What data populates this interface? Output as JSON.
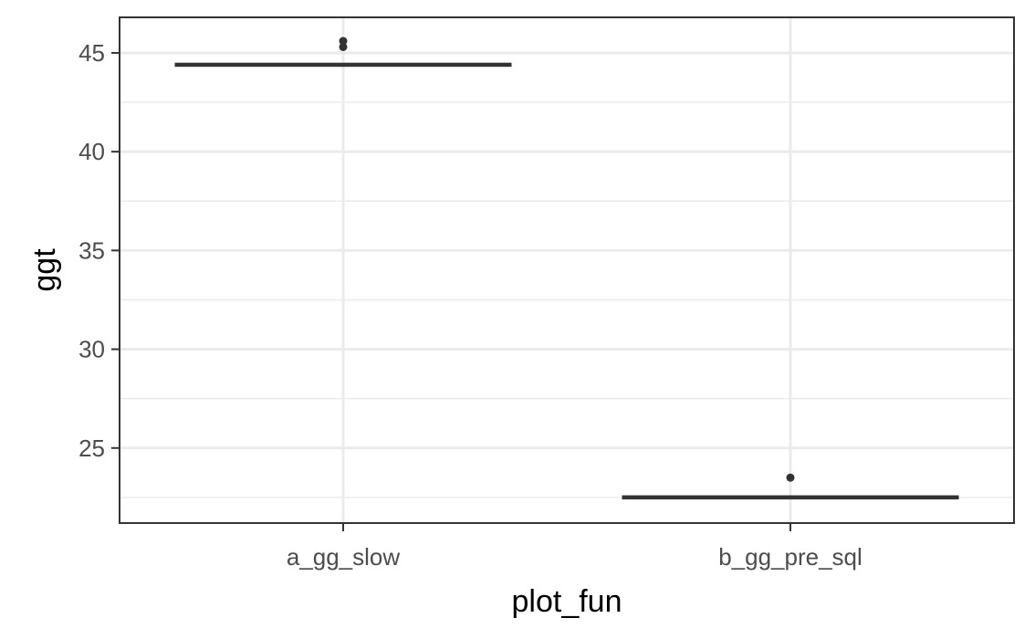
{
  "chart_data": {
    "type": "boxplot",
    "title": "",
    "xlabel": "plot_fun",
    "ylabel": "ggt",
    "categories": [
      "a_gg_slow",
      "b_gg_pre_sql"
    ],
    "ylim": [
      21.2,
      46.8
    ],
    "y_ticks": [
      25,
      30,
      35,
      40,
      45
    ],
    "grid": true,
    "boxes": [
      {
        "category": "a_gg_slow",
        "min": 44.4,
        "q1": 44.4,
        "median": 44.4,
        "q3": 44.4,
        "max": 44.4,
        "outliers": [
          45.3,
          45.6
        ]
      },
      {
        "category": "b_gg_pre_sql",
        "min": 22.4,
        "q1": 22.5,
        "median": 22.5,
        "q3": 22.5,
        "max": 22.6,
        "outliers": [
          23.5
        ]
      }
    ],
    "colors": {
      "grid": "#ebebeb",
      "box": "#333333",
      "panel_border": "#333333",
      "background": "#ffffff"
    }
  }
}
